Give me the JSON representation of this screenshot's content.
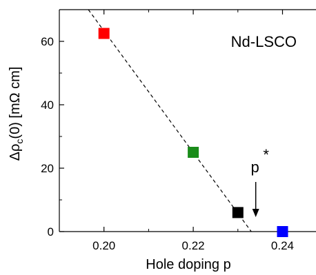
{
  "chart_data": {
    "type": "scatter",
    "xlabel": "Hole doping p",
    "ylabel": "Δρc(0) [mΩ cm]",
    "ylabel_main": "Δρ",
    "ylabel_sub": "c",
    "ylabel_rest": "(0) [mΩ cm]",
    "xlim": [
      0.19,
      0.2475
    ],
    "ylim": [
      0,
      70
    ],
    "x_ticks": [
      0.2,
      0.22,
      0.24
    ],
    "x_tick_labels": [
      "0.20",
      "0.22",
      "0.24"
    ],
    "y_ticks": [
      0,
      20,
      40,
      60
    ],
    "y_tick_labels": [
      "0",
      "20",
      "40",
      "60"
    ],
    "grid": false,
    "legend": "none",
    "points": [
      {
        "x": 0.2,
        "y": 62.5,
        "color": "#ff0000"
      },
      {
        "x": 0.22,
        "y": 25.0,
        "color": "#1a8c1a"
      },
      {
        "x": 0.23,
        "y": 6.0,
        "color": "#000000"
      },
      {
        "x": 0.24,
        "y": 0.0,
        "color": "#0000ff"
      }
    ],
    "fit_line": {
      "style": "dashed",
      "color": "#000000",
      "from": {
        "x": 0.1965,
        "y": 70
      },
      "to": {
        "x": 0.233,
        "y": 0
      }
    },
    "annotations": {
      "sample_label": "Nd-LSCO",
      "pstar_base": "p",
      "pstar_mark": "*",
      "pstar_x": 0.234
    }
  }
}
